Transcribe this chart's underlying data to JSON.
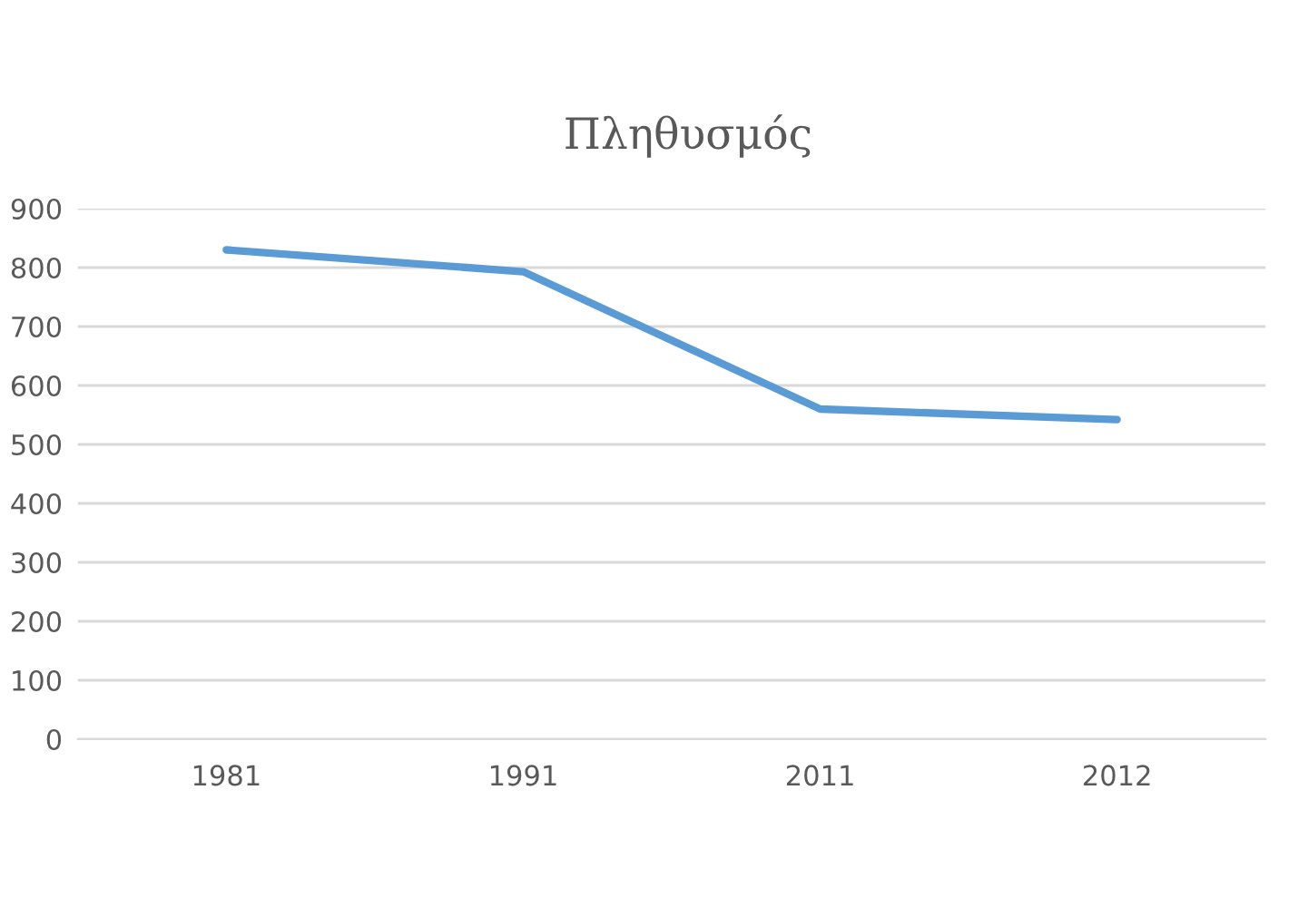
{
  "chart_data": {
    "type": "line",
    "title": "Πληθυσμός",
    "categories": [
      "1981",
      "1991",
      "2011",
      "2012"
    ],
    "series": [
      {
        "color": "#5b9bd5",
        "values": [
          830,
          793,
          560,
          542
        ]
      }
    ],
    "ylim": [
      0,
      900
    ],
    "yticks": [
      0,
      100,
      200,
      300,
      400,
      500,
      600,
      700,
      800,
      900
    ],
    "grid": "y",
    "marker": "none",
    "line_style": "solid"
  }
}
